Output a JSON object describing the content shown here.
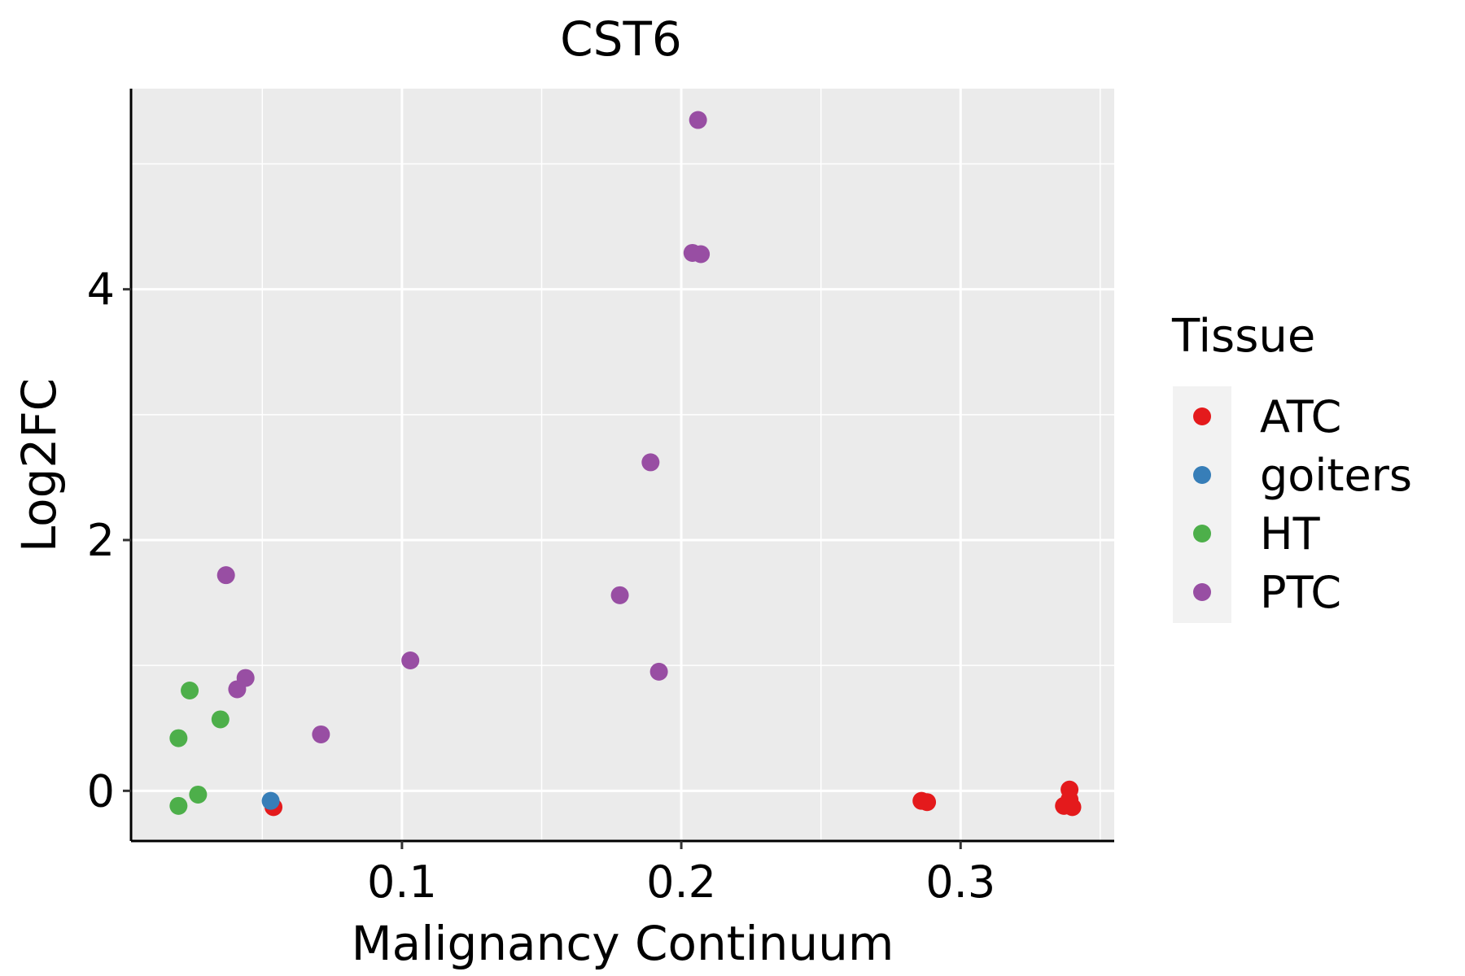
{
  "chart_data": {
    "type": "scatter",
    "title": "CST6",
    "xlabel": "Malignancy Continuum",
    "ylabel": "Log2FC",
    "xlim": [
      0.003,
      0.355
    ],
    "ylim": [
      -0.4,
      5.6
    ],
    "x_ticks": [
      0.1,
      0.2,
      0.3
    ],
    "x_tick_labels": [
      "0.1",
      "0.2",
      "0.3"
    ],
    "x_minor_grid": [
      0.05,
      0.15,
      0.25,
      0.35
    ],
    "y_ticks": [
      0,
      2,
      4
    ],
    "y_tick_labels": [
      "0",
      "2",
      "4"
    ],
    "y_minor_grid": [
      1,
      3,
      5
    ],
    "grid": true,
    "legend": {
      "title": "Tissue",
      "position": "right"
    },
    "series": [
      {
        "name": "ATC",
        "color": "#E41A1C",
        "points": [
          {
            "x": 0.054,
            "y": -0.13
          },
          {
            "x": 0.286,
            "y": -0.08
          },
          {
            "x": 0.288,
            "y": -0.09
          },
          {
            "x": 0.339,
            "y": 0.01
          },
          {
            "x": 0.339,
            "y": -0.07
          },
          {
            "x": 0.337,
            "y": -0.12
          },
          {
            "x": 0.34,
            "y": -0.13
          }
        ]
      },
      {
        "name": "goiters",
        "color": "#377EB8",
        "points": [
          {
            "x": 0.053,
            "y": -0.08
          }
        ]
      },
      {
        "name": "HT",
        "color": "#4DAF4A",
        "points": [
          {
            "x": 0.02,
            "y": 0.42
          },
          {
            "x": 0.024,
            "y": 0.8
          },
          {
            "x": 0.035,
            "y": 0.57
          },
          {
            "x": 0.027,
            "y": -0.03
          },
          {
            "x": 0.02,
            "y": -0.12
          }
        ]
      },
      {
        "name": "PTC",
        "color": "#984EA3",
        "points": [
          {
            "x": 0.206,
            "y": 5.35
          },
          {
            "x": 0.204,
            "y": 4.29
          },
          {
            "x": 0.207,
            "y": 4.28
          },
          {
            "x": 0.189,
            "y": 2.62
          },
          {
            "x": 0.037,
            "y": 1.72
          },
          {
            "x": 0.178,
            "y": 1.56
          },
          {
            "x": 0.103,
            "y": 1.04
          },
          {
            "x": 0.192,
            "y": 0.95
          },
          {
            "x": 0.044,
            "y": 0.9
          },
          {
            "x": 0.041,
            "y": 0.81
          },
          {
            "x": 0.071,
            "y": 0.45
          }
        ]
      }
    ]
  }
}
